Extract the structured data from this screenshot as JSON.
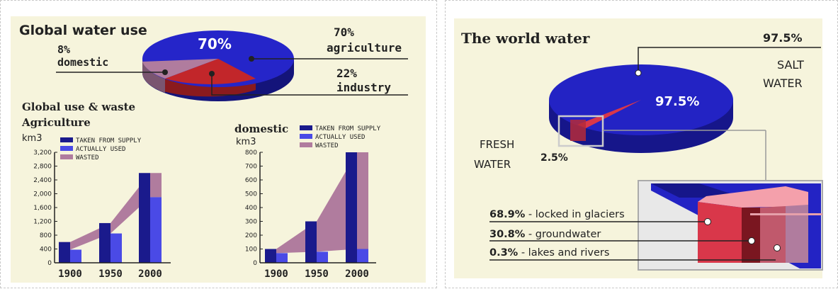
{
  "colors": {
    "background": "#f6f4dc",
    "taken": "#1a1a8c",
    "used": "#4a4ae6",
    "wasted": "#b07c9e",
    "agri_slice": "#2525c9",
    "industry_slice": "#c2262a",
    "domestic_slice": "#b07c9e",
    "salt": "#2323c4",
    "fresh_glacier": "#d9374a",
    "fresh_ground": "#a8293c",
    "fresh_lakes": "#b07c9e"
  },
  "global_use": {
    "title": "Global water use",
    "center_label": "70%",
    "agriculture": {
      "percent": "70%",
      "label": "agriculture",
      "value": 70
    },
    "industry": {
      "percent": "22%",
      "label": "industry",
      "value": 22
    },
    "domestic": {
      "percent": "8%",
      "label": "domestic",
      "value": 8
    }
  },
  "section_title": "Global use & waste",
  "legend": [
    "TAKEN FROM SUPPLY",
    "ACTUALLY USED",
    "WASTED"
  ],
  "chart_data": [
    {
      "type": "bar",
      "title": "Agriculture",
      "ylabel": "km3",
      "categories": [
        "1900",
        "1950",
        "2000"
      ],
      "ylim": [
        0,
        3200
      ],
      "yticks": [
        "0",
        "400",
        "800",
        "1,200",
        "1,600",
        "2,000",
        "2,400",
        "2,800",
        "3,200"
      ],
      "series": [
        {
          "name": "TAKEN FROM SUPPLY",
          "values": [
            600,
            1150,
            2600
          ]
        },
        {
          "name": "ACTUALLY USED",
          "values": [
            380,
            850,
            1900
          ]
        },
        {
          "name": "WASTED",
          "values": [
            220,
            300,
            700
          ]
        }
      ]
    },
    {
      "type": "bar",
      "title": "domestic",
      "ylabel": "km3",
      "categories": [
        "1900",
        "1950",
        "2000"
      ],
      "ylim": [
        0,
        800
      ],
      "yticks": [
        "0",
        "100",
        "200",
        "300",
        "400",
        "500",
        "600",
        "700",
        "800"
      ],
      "series": [
        {
          "name": "TAKEN FROM SUPPLY",
          "values": [
            100,
            300,
            800
          ]
        },
        {
          "name": "ACTUALLY USED",
          "values": [
            70,
            80,
            100
          ]
        },
        {
          "name": "WASTED",
          "values": [
            30,
            220,
            700
          ]
        }
      ]
    },
    {
      "type": "pie",
      "title": "Global water use",
      "categories": [
        "agriculture",
        "industry",
        "domestic"
      ],
      "values": [
        70,
        22,
        8
      ]
    },
    {
      "type": "pie",
      "title": "The world water",
      "categories": [
        "SALT WATER",
        "FRESH WATER"
      ],
      "values": [
        97.5,
        2.5
      ]
    }
  ],
  "world_water": {
    "title": "The world water",
    "salt_percent": "97.5%",
    "salt_label_1": "SALT",
    "salt_label_2": "WATER",
    "pie_label": "97.5%",
    "fresh_label_1": "FRESH",
    "fresh_label_2": "WATER",
    "fresh_percent": "2.5%",
    "breakdown": [
      {
        "percent": "68.9%",
        "text": " - locked in glaciers",
        "value": 68.9
      },
      {
        "percent": "30.8%",
        "text": " - groundwater",
        "value": 30.8
      },
      {
        "percent": "0.3%",
        "text": " - lakes and rivers",
        "value": 0.3
      }
    ]
  }
}
